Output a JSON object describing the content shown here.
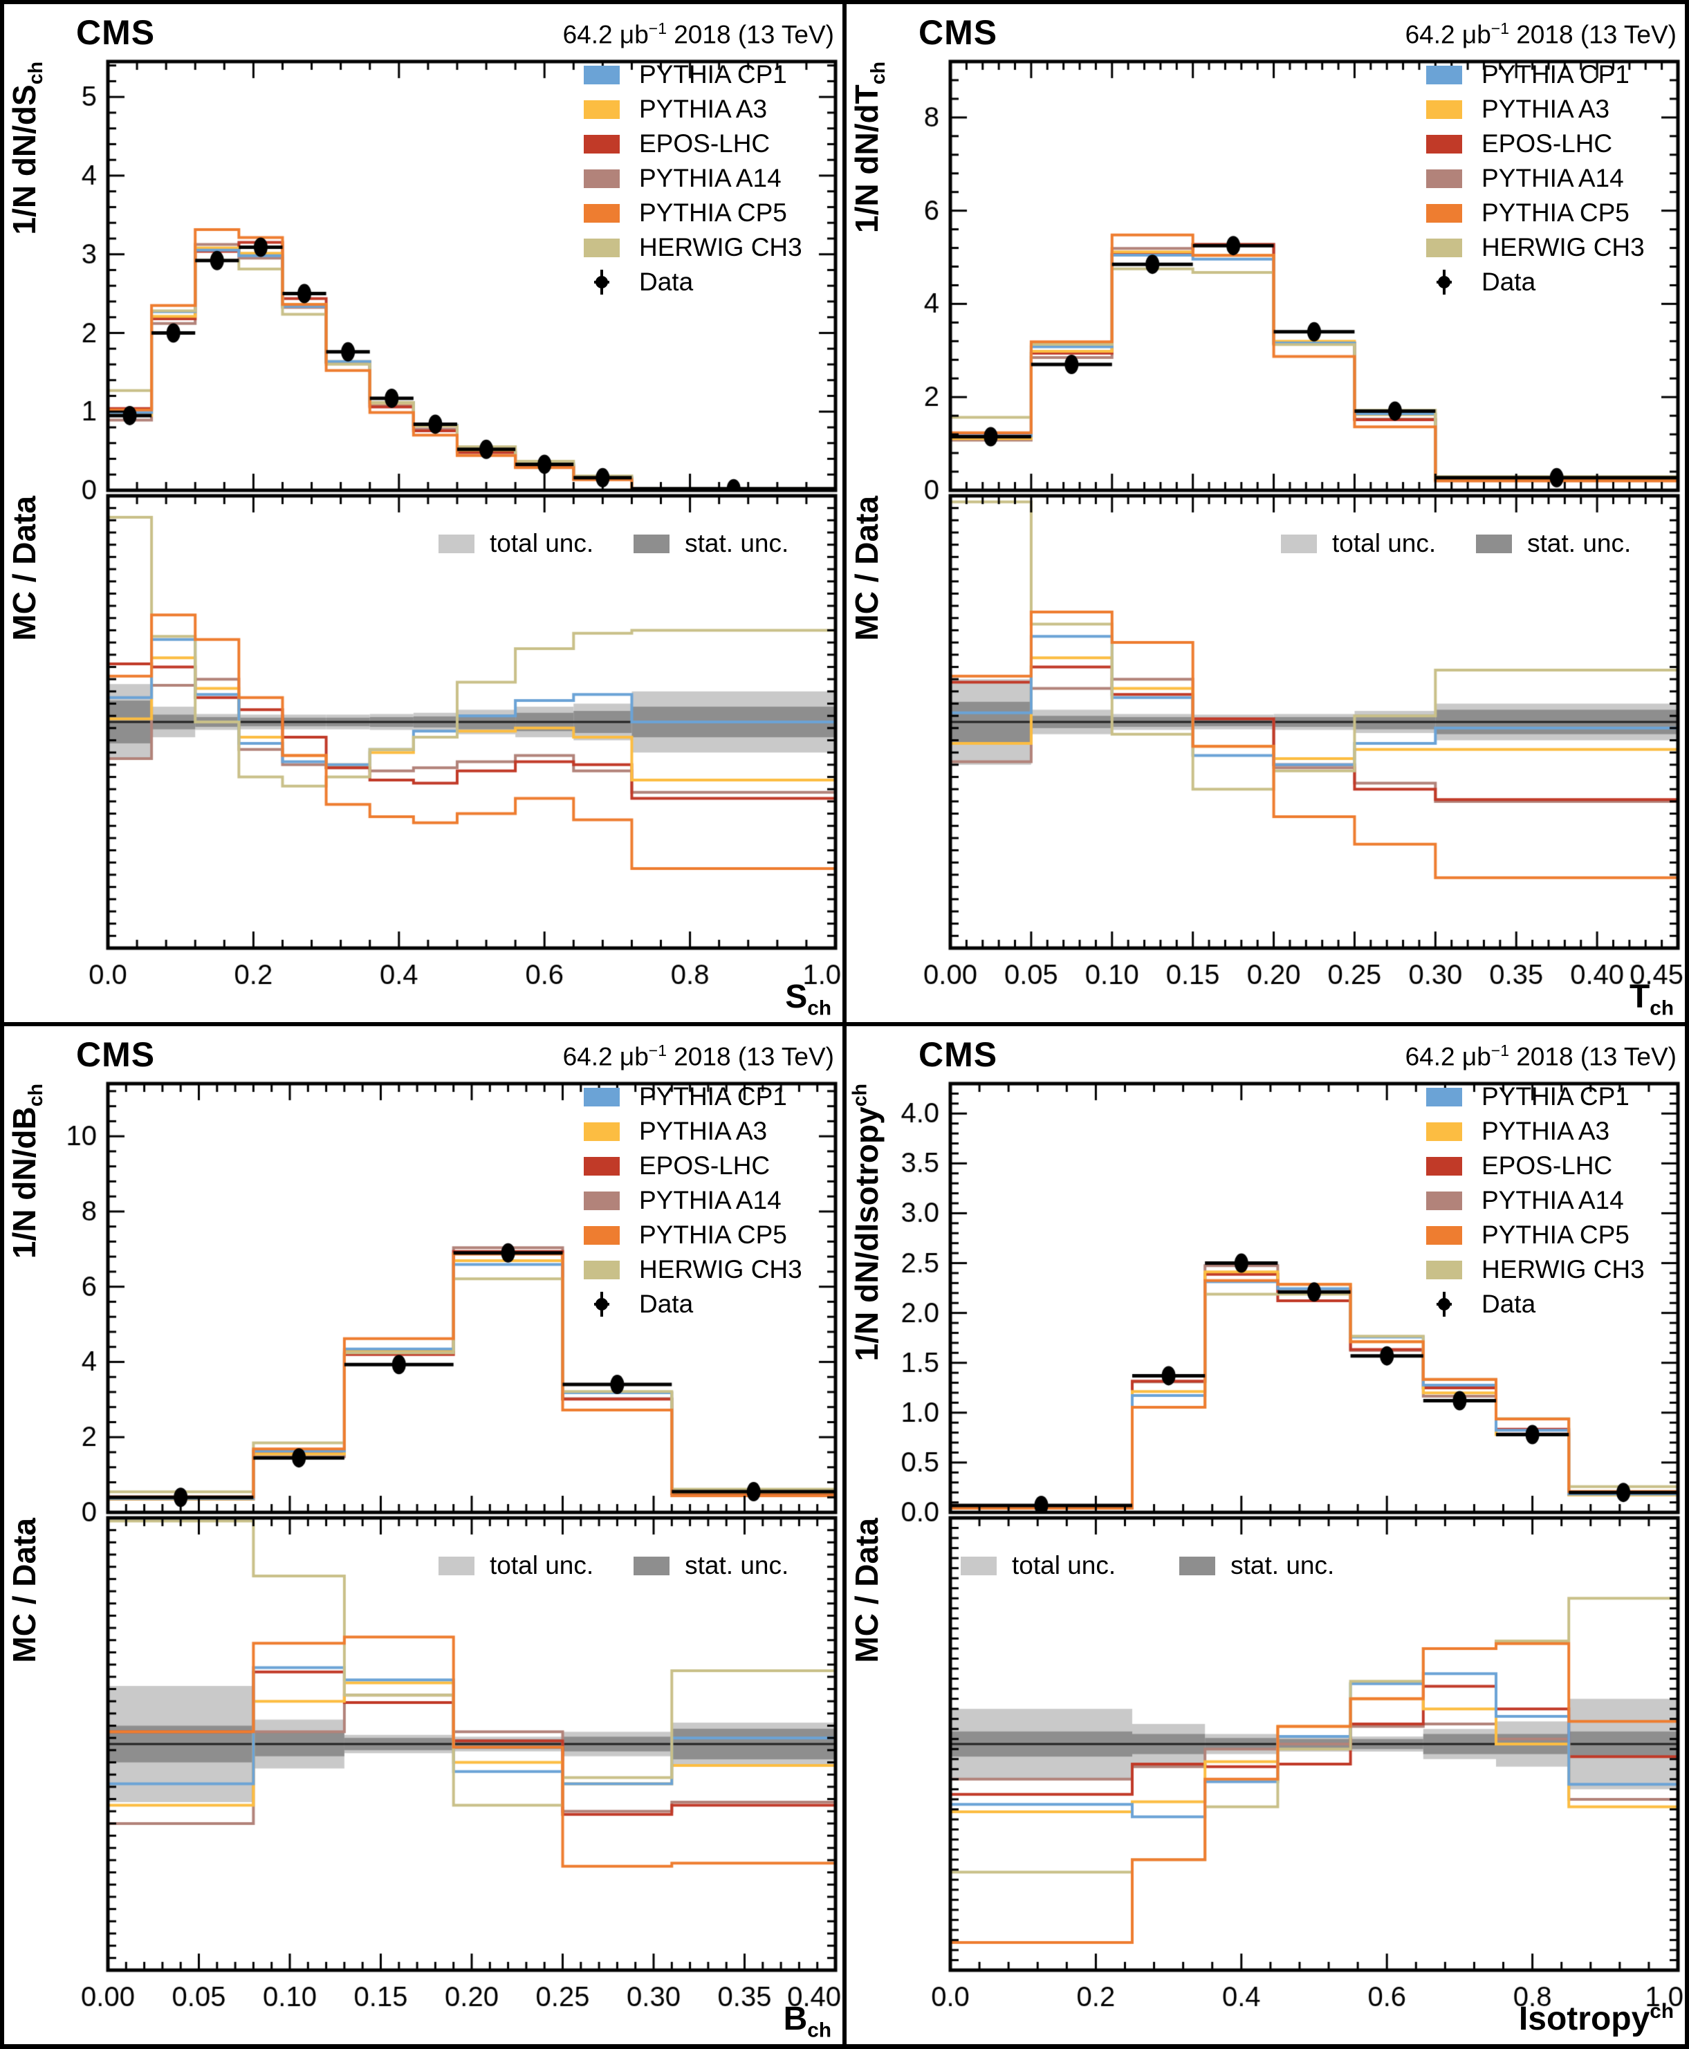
{
  "header": {
    "cms": "CMS",
    "lumi_prefix": "64.2 μb",
    "lumi_sup": "−1",
    "lumi_suffix": " 2018 (13 TeV)"
  },
  "ratio_y_title": "MC / Data",
  "legend": {
    "position": "top-right",
    "series": [
      {
        "label": "PYTHIA CP1",
        "color": "#6ba3d6"
      },
      {
        "label": "PYTHIA A3",
        "color": "#fcbd42"
      },
      {
        "label": "EPOS-LHC",
        "color": "#c13a28"
      },
      {
        "label": "PYTHIA A14",
        "color": "#b2837a"
      },
      {
        "label": "PYTHIA CP5",
        "color": "#ee7d30"
      },
      {
        "label": "HERWIG CH3",
        "color": "#c9c089"
      }
    ],
    "data_label": "Data",
    "data_marker_color": "#000000"
  },
  "unc_legend": {
    "total_label": "total unc.",
    "stat_label": "stat. unc.",
    "total_color": "#c9c9c9",
    "stat_color": "#8e8e8e"
  },
  "chart_data": [
    {
      "type": "step-histogram",
      "name": "S_ch",
      "x_title_base": "S",
      "x_title_sub": "ch",
      "x_title_sup": "",
      "y_title_base": "1/N dN/dS",
      "y_title_sub": "ch",
      "y_title_sup": "",
      "axes": {
        "x": {
          "min": 0,
          "max": 1.0,
          "major": 0.2,
          "minor": 0.04,
          "decimals": 1
        },
        "main_y": {
          "min": 0,
          "max": 5.45,
          "major": 1,
          "minor": 0.2,
          "decimals": 0
        },
        "ratio_y": {
          "min": 0.63,
          "max": 1.37,
          "major": 0.1,
          "minor": 0.02,
          "decimals": 1
        }
      },
      "bin_edges": [
        0,
        0.06,
        0.12,
        0.18,
        0.24,
        0.3,
        0.36,
        0.42,
        0.48,
        0.56,
        0.64,
        0.72,
        1.0
      ],
      "data": [
        0.95,
        2.0,
        2.92,
        3.09,
        2.5,
        1.76,
        1.17,
        0.84,
        0.52,
        0.33,
        0.16,
        0.02
      ],
      "data_err": [
        0.03,
        0.05,
        0.07,
        0.07,
        0.06,
        0.05,
        0.04,
        0.03,
        0.02,
        0.02,
        0.015,
        0.005
      ],
      "unc_total": [
        0.062,
        0.025,
        0.013,
        0.012,
        0.012,
        0.012,
        0.013,
        0.015,
        0.02,
        0.025,
        0.03,
        0.05
      ],
      "unc_stat": [
        0.035,
        0.012,
        0.008,
        0.007,
        0.007,
        0.007,
        0.008,
        0.009,
        0.012,
        0.015,
        0.018,
        0.025
      ],
      "series": [
        {
          "name": "PYTHIA CP1",
          "ratio": [
            1.04,
            1.135,
            1.045,
            0.965,
            0.935,
            0.93,
            0.955,
            0.985,
            1.01,
            1.035,
            1.045,
            1.0
          ]
        },
        {
          "name": "PYTHIA A3",
          "ratio": [
            1.005,
            1.105,
            1.055,
            0.975,
            0.945,
            0.93,
            0.95,
            0.975,
            0.985,
            0.99,
            0.975,
            0.905
          ]
        },
        {
          "name": "EPOS-LHC",
          "ratio": [
            1.095,
            1.09,
            1.04,
            1.02,
            0.975,
            0.925,
            0.905,
            0.9,
            0.92,
            0.935,
            0.93,
            0.875
          ]
        },
        {
          "name": "PYTHIA A14",
          "ratio": [
            0.94,
            1.06,
            1.07,
            0.955,
            0.93,
            0.925,
            0.92,
            0.925,
            0.935,
            0.945,
            0.92,
            0.885
          ]
        },
        {
          "name": "PYTHIA CP5",
          "ratio": [
            1.075,
            1.175,
            1.135,
            1.04,
            0.945,
            0.865,
            0.845,
            0.835,
            0.85,
            0.875,
            0.84,
            0.76
          ]
        },
        {
          "name": "HERWIG CH3",
          "ratio": [
            1.335,
            1.14,
            1.0,
            0.91,
            0.895,
            0.91,
            0.955,
            0.975,
            1.065,
            1.12,
            1.145,
            1.15
          ]
        }
      ]
    },
    {
      "type": "step-histogram",
      "name": "T_ch",
      "x_title_base": "T",
      "x_title_sub": "ch",
      "x_title_sup": "",
      "y_title_base": "1/N dN/dT",
      "y_title_sub": "ch",
      "y_title_sup": "",
      "axes": {
        "x": {
          "min": 0,
          "max": 0.45,
          "major": 0.05,
          "minor": 0.01,
          "decimals": 2
        },
        "main_y": {
          "min": 0,
          "max": 9.2,
          "major": 2,
          "minor": 0.4,
          "decimals": 0
        },
        "ratio_y": {
          "min": 0.63,
          "max": 1.37,
          "major": 0.1,
          "minor": 0.02,
          "decimals": 1
        }
      },
      "bin_edges": [
        0,
        0.05,
        0.1,
        0.15,
        0.2,
        0.25,
        0.3,
        0.45
      ],
      "data": [
        1.15,
        2.7,
        4.85,
        5.25,
        3.4,
        1.7,
        0.27
      ],
      "data_err": [
        0.04,
        0.07,
        0.1,
        0.1,
        0.08,
        0.05,
        0.015
      ],
      "unc_total": [
        0.07,
        0.02,
        0.013,
        0.012,
        0.013,
        0.018,
        0.03
      ],
      "unc_stat": [
        0.033,
        0.01,
        0.008,
        0.007,
        0.008,
        0.012,
        0.02
      ],
      "series": [
        {
          "name": "PYTHIA CP1",
          "ratio": [
            1.015,
            1.14,
            1.04,
            0.945,
            0.93,
            0.965,
            0.99
          ]
        },
        {
          "name": "PYTHIA A3",
          "ratio": [
            0.965,
            1.105,
            1.055,
            0.96,
            0.94,
            0.955,
            0.955
          ]
        },
        {
          "name": "EPOS-LHC",
          "ratio": [
            1.065,
            1.09,
            1.045,
            1.005,
            0.93,
            0.89,
            0.873
          ]
        },
        {
          "name": "PYTHIA A14",
          "ratio": [
            0.935,
            1.055,
            1.07,
            1.005,
            0.925,
            0.9,
            0.87
          ]
        },
        {
          "name": "PYTHIA CP5",
          "ratio": [
            1.075,
            1.18,
            1.13,
            0.96,
            0.845,
            0.8,
            0.745
          ]
        },
        {
          "name": "HERWIG CH3",
          "ratio": [
            1.36,
            1.16,
            0.98,
            0.89,
            0.92,
            1.01,
            1.085
          ]
        }
      ]
    },
    {
      "type": "step-histogram",
      "name": "B_ch",
      "x_title_base": "B",
      "x_title_sub": "ch",
      "x_title_sup": "",
      "y_title_base": "1/N dN/dB",
      "y_title_sub": "ch",
      "y_title_sup": "",
      "axes": {
        "x": {
          "min": 0,
          "max": 0.4,
          "major": 0.05,
          "minor": 0.01,
          "decimals": 2
        },
        "main_y": {
          "min": 0,
          "max": 11.4,
          "major": 2,
          "minor": 0.4,
          "decimals": 0
        },
        "ratio_y": {
          "min": 0.63,
          "max": 1.37,
          "major": 0.1,
          "minor": 0.02,
          "decimals": 1
        }
      },
      "bin_edges": [
        0,
        0.08,
        0.13,
        0.19,
        0.25,
        0.31,
        0.4
      ],
      "data": [
        0.4,
        1.45,
        3.93,
        6.9,
        3.4,
        0.55
      ],
      "data_err": [
        0.02,
        0.05,
        0.09,
        0.12,
        0.08,
        0.025
      ],
      "unc_total": [
        0.095,
        0.04,
        0.015,
        0.012,
        0.02,
        0.035
      ],
      "unc_stat": [
        0.03,
        0.02,
        0.01,
        0.008,
        0.012,
        0.025
      ],
      "series": [
        {
          "name": "PYTHIA CP1",
          "ratio": [
            0.935,
            1.125,
            1.105,
            0.955,
            0.935,
            1.01
          ]
        },
        {
          "name": "PYTHIA A3",
          "ratio": [
            0.9,
            1.07,
            1.1,
            0.97,
            0.935,
            0.965
          ]
        },
        {
          "name": "EPOS-LHC",
          "ratio": [
            1.02,
            1.118,
            1.068,
            1.005,
            0.885,
            0.9
          ]
        },
        {
          "name": "PYTHIA A14",
          "ratio": [
            0.87,
            1.02,
            1.08,
            1.02,
            0.89,
            0.905
          ]
        },
        {
          "name": "PYTHIA CP5",
          "ratio": [
            1.02,
            1.165,
            1.175,
            0.995,
            0.8,
            0.805
          ]
        },
        {
          "name": "HERWIG CH3",
          "ratio": [
            1.365,
            1.275,
            1.08,
            0.9,
            0.945,
            1.12
          ]
        }
      ]
    },
    {
      "type": "step-histogram",
      "name": "Isotropy_ch",
      "x_title_base": "Isotropy",
      "x_title_sub": "",
      "x_title_sup": "ch",
      "y_title_base": "1/N dN/dIsotropy",
      "y_title_sub": "",
      "y_title_sup": "ch",
      "axes": {
        "x": {
          "min": 0,
          "max": 1.0,
          "major": 0.2,
          "minor": 0.04,
          "decimals": 1
        },
        "main_y": {
          "min": 0,
          "max": 4.3,
          "major": 0.5,
          "minor": 0.1,
          "decimals": 1
        },
        "ratio_y": {
          "min": 0.55,
          "max": 1.45,
          "major": 0.1,
          "minor": 0.02,
          "decimals": 1
        }
      },
      "bin_edges": [
        0,
        0.25,
        0.35,
        0.45,
        0.55,
        0.65,
        0.75,
        0.85,
        1.0
      ],
      "data": [
        0.07,
        1.37,
        2.5,
        2.21,
        1.57,
        1.12,
        0.78,
        0.2
      ],
      "data_err": [
        0.005,
        0.04,
        0.06,
        0.055,
        0.045,
        0.035,
        0.03,
        0.012
      ],
      "unc_total": [
        0.07,
        0.04,
        0.02,
        0.015,
        0.015,
        0.03,
        0.045,
        0.09
      ],
      "unc_stat": [
        0.025,
        0.02,
        0.012,
        0.01,
        0.01,
        0.02,
        0.02,
        0.025
      ],
      "series": [
        {
          "name": "PYTHIA CP1",
          "ratio": [
            0.88,
            0.855,
            0.925,
            1.015,
            1.12,
            1.14,
            1.055,
            0.92
          ]
        },
        {
          "name": "PYTHIA A3",
          "ratio": [
            0.865,
            0.885,
            0.965,
            1.035,
            1.09,
            1.07,
            1.0,
            0.875
          ]
        },
        {
          "name": "EPOS-LHC",
          "ratio": [
            0.9,
            0.96,
            0.955,
            0.96,
            1.04,
            1.115,
            1.07,
            0.975
          ]
        },
        {
          "name": "PYTHIA A14",
          "ratio": [
            0.93,
            0.955,
            0.99,
            1.0,
            1.035,
            1.04,
            1.01,
            0.89
          ]
        },
        {
          "name": "PYTHIA CP5",
          "ratio": [
            0.605,
            0.77,
            0.93,
            1.035,
            1.09,
            1.19,
            1.2,
            1.045
          ]
        },
        {
          "name": "HERWIG CH3",
          "ratio": [
            0.745,
            0.77,
            0.875,
            0.99,
            1.125,
            1.19,
            1.205,
            1.29
          ]
        }
      ]
    }
  ]
}
